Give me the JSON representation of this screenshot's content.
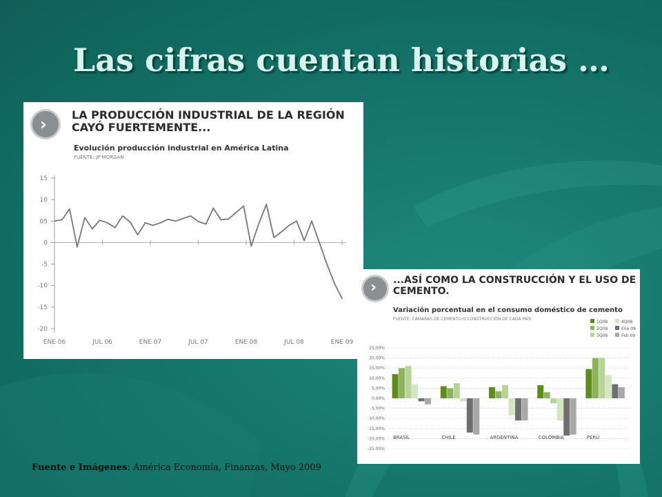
{
  "slide": {
    "title": "Las cifras cuentan historias …",
    "footer_bold": "Fuente e Imágenes",
    "footer_rest": ": América Economía, Finanzas, Mayo 2009"
  },
  "colors": {
    "background": "#15766b",
    "title": "#d8f4ee",
    "line": "#777777",
    "bar_1q08": "#5e8d1e",
    "bar_2q08": "#8fb35a",
    "bar_3q08": "#b8d398",
    "bar_4q08": "#d3e6bf",
    "bar_ene09": "#6f6f6f",
    "bar_feb09": "#a8a8a8"
  },
  "chart1": {
    "badge_icon": "chevron-right-icon",
    "title": "LA PRODUCCIÓN INDUSTRIAL DE LA REGIÓN\nCAYÓ FUERTEMENTE...",
    "subtitle": "Evolución producción industrial en América Latina",
    "source": "FUENTE: JP MORGAN"
  },
  "chart2": {
    "badge_icon": "chevron-right-icon",
    "title": "...ASÍ COMO LA CONSTRUCCIÓN Y EL USO DE\nCEMENTO.",
    "subtitle": "Variación porcentual en el consumo doméstico de cemento",
    "source": "FUENTE: CÁMARAS DE CEMENTO O CONSTRUCCIÓN DE CADA PAÍS"
  },
  "chart_data": [
    {
      "type": "line",
      "title": "LA PRODUCCIÓN INDUSTRIAL DE LA REGIÓN CAYÓ FUERTEMENTE...",
      "subtitle": "Evolución producción industrial en América Latina",
      "source": "FUENTE: JP MORGAN",
      "x_ticks": [
        "ENE 06",
        "JUL 06",
        "ENE 07",
        "JUL 07",
        "ENE 08",
        "JUL 08",
        "ENE 09"
      ],
      "y_ticks": [
        "15",
        "10",
        "05",
        "0",
        "-5",
        "-10",
        "-15",
        "-20"
      ],
      "y_tick_values": [
        15,
        10,
        5,
        0,
        -5,
        -10,
        -15,
        -20
      ],
      "ylim": [
        -20,
        15
      ],
      "x_index_range": [
        0,
        38
      ],
      "grid": false,
      "series": [
        {
          "x": [
            0,
            1,
            2,
            3,
            4,
            5,
            6,
            7,
            8,
            9,
            10,
            11,
            12,
            13,
            14,
            15,
            16,
            17,
            18,
            19,
            20,
            21,
            22,
            23,
            24,
            25,
            26,
            27,
            28,
            29,
            30,
            31,
            32,
            33,
            34,
            35,
            36,
            37,
            38
          ],
          "values": [
            5.0,
            5.3,
            7.8,
            -1.0,
            5.8,
            3.2,
            5.2,
            4.6,
            3.5,
            6.2,
            4.8,
            1.8,
            4.6,
            4.0,
            4.6,
            5.4,
            5.0,
            5.6,
            6.2,
            4.9,
            4.3,
            8.0,
            5.3,
            5.5,
            7.0,
            8.5,
            -0.8,
            4.4,
            8.9,
            1.2,
            2.5,
            4.0,
            5.0,
            0.5,
            5.0,
            0.0,
            -5.0,
            -9.5,
            -13.0
          ]
        }
      ]
    },
    {
      "type": "bar",
      "title": "...ASÍ COMO LA CONSTRUCCIÓN Y EL USO DE CEMENTO.",
      "subtitle": "Variación porcentual en el consumo doméstico de cemento",
      "source": "FUENTE: CÁMARAS DE CEMENTO O CONSTRUCCIÓN DE CADA PAÍS",
      "categories": [
        "BRASIL",
        "CHILE",
        "ARGENTINA",
        "COLOMBIA",
        "PERÚ"
      ],
      "y_ticks": [
        "25,00%",
        "20,00%",
        "15,00%",
        "10,00%",
        "5,00%",
        "0,00%",
        "-5,00%",
        "-10,00%",
        "-15,00%",
        "-20,00%",
        "-25,00%"
      ],
      "y_tick_values": [
        25,
        20,
        15,
        10,
        5,
        0,
        -5,
        -10,
        -15,
        -20,
        -25
      ],
      "ylim": [
        -25,
        25
      ],
      "grid": true,
      "legend_position": "top-right",
      "series": [
        {
          "name": "1Q08",
          "color": "#5e8d1e",
          "values": [
            12,
            6,
            5.5,
            6.5,
            14.5
          ]
        },
        {
          "name": "2Q08",
          "color": "#8fb35a",
          "values": [
            15,
            5,
            3.5,
            3,
            20
          ]
        },
        {
          "name": "3Q08",
          "color": "#b8d398",
          "values": [
            16,
            7.5,
            6.5,
            -2.5,
            20
          ]
        },
        {
          "name": "4Q08",
          "color": "#d3e6bf",
          "values": [
            7,
            -1.5,
            -8.5,
            -11,
            11.5
          ]
        },
        {
          "name": "Ene 09",
          "color": "#6f6f6f",
          "values": [
            -1.5,
            -17,
            -11,
            -18.5,
            7
          ]
        },
        {
          "name": "Feb 09",
          "color": "#a8a8a8",
          "values": [
            -3,
            -18,
            -11,
            -18,
            5.5
          ]
        }
      ]
    }
  ]
}
